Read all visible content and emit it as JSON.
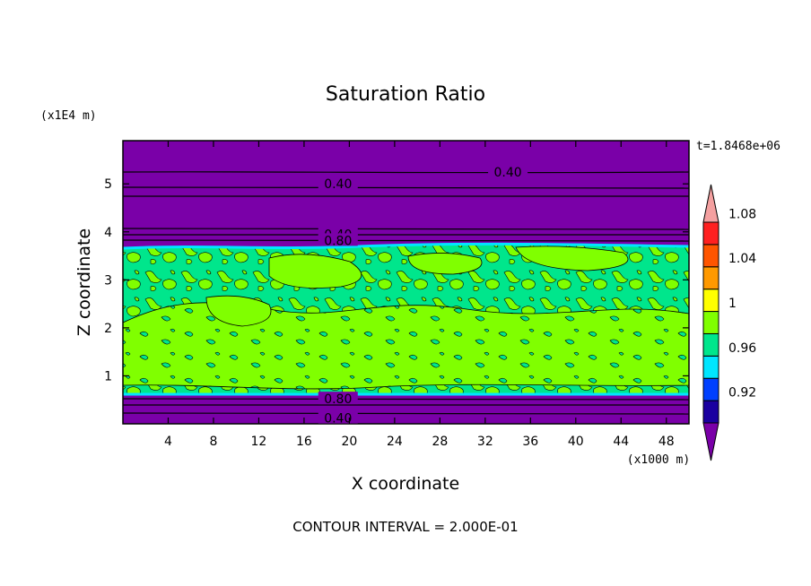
{
  "chart_data": {
    "type": "heatmap",
    "title": "Saturation Ratio",
    "xlabel": "X coordinate",
    "ylabel": "Z coordinate",
    "x_unit": "(x1000 m)",
    "y_unit": "(x1E4 m)",
    "time_label": "t=1.8468e+06",
    "footer": "CONTOUR INTERVAL = 2.000E-01",
    "xlim": [
      0,
      50
    ],
    "ylim": [
      0,
      5.9
    ],
    "x_ticks": [
      {
        "value": 4,
        "label": "4"
      },
      {
        "value": 8,
        "label": "8"
      },
      {
        "value": 12,
        "label": "12"
      },
      {
        "value": 16,
        "label": "16"
      },
      {
        "value": 20,
        "label": "20"
      },
      {
        "value": 24,
        "label": "24"
      },
      {
        "value": 28,
        "label": "28"
      },
      {
        "value": 32,
        "label": "32"
      },
      {
        "value": 36,
        "label": "36"
      },
      {
        "value": 40,
        "label": "40"
      },
      {
        "value": 44,
        "label": "44"
      },
      {
        "value": 48,
        "label": "48"
      }
    ],
    "y_ticks": [
      {
        "value": 1,
        "label": "1"
      },
      {
        "value": 2,
        "label": "2"
      },
      {
        "value": 3,
        "label": "3"
      },
      {
        "value": 4,
        "label": "4"
      },
      {
        "value": 5,
        "label": "5"
      }
    ],
    "layers": [
      {
        "z_from": 0,
        "z_to": 0.6,
        "level": "<0.92",
        "color": "#7a00a8"
      },
      {
        "z_from": 0.6,
        "z_to": 3.0,
        "level": "0.98-1.02 mixed",
        "color": "#00e68c"
      },
      {
        "z_from": 3.0,
        "z_to": 3.75,
        "level": "0.98-1.0",
        "color": "#00e68c"
      },
      {
        "z_from": 3.75,
        "z_to": 5.9,
        "level": "<0.92",
        "color": "#7a00a8"
      }
    ],
    "contour_labels": [
      {
        "x": 19,
        "z": 5.0,
        "label": "0.40"
      },
      {
        "x": 34,
        "z": 5.25,
        "label": "0.40"
      },
      {
        "x": 19,
        "z": 3.95,
        "label": "0.40"
      },
      {
        "x": 19,
        "z": 3.82,
        "label": "0.80"
      },
      {
        "x": 19,
        "z": 0.52,
        "label": "0.80"
      },
      {
        "x": 19,
        "z": 0.12,
        "label": "0.40"
      }
    ],
    "colorbar": {
      "colors": [
        "#7a00a8",
        "#1a00a0",
        "#0040ff",
        "#00e6ff",
        "#00e68c",
        "#80ff00",
        "#ffff00",
        "#ff9900",
        "#ff5500",
        "#ff2020",
        "#f4a0a0"
      ],
      "tick_labels": [
        {
          "after_index": 1,
          "label": "0.92"
        },
        {
          "after_index": 3,
          "label": "0.96"
        },
        {
          "after_index": 5,
          "label": "1"
        },
        {
          "after_index": 7,
          "label": "1.04"
        },
        {
          "after_index": 9,
          "label": "1.08"
        }
      ]
    }
  }
}
